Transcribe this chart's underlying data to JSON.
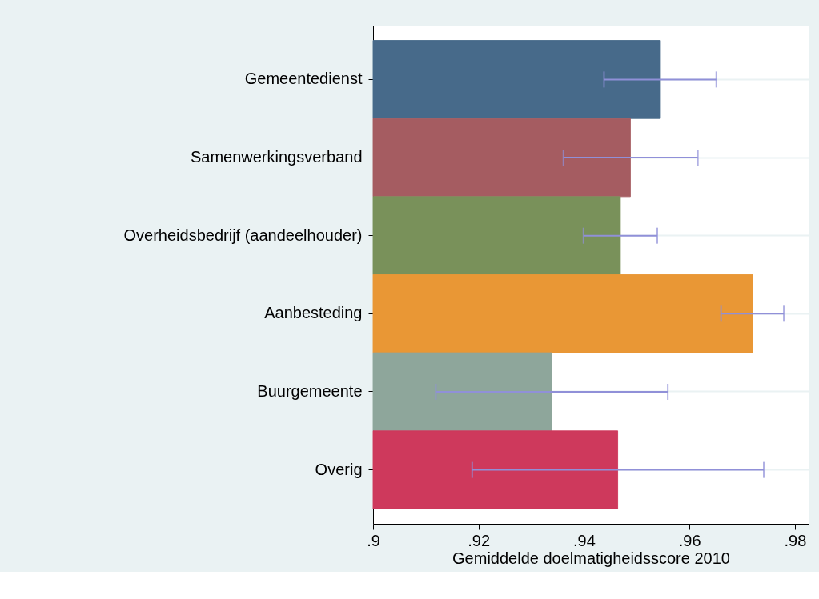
{
  "chart_data": {
    "type": "bar",
    "orientation": "horizontal",
    "xlabel": "Gemiddelde doelmatigheidsscore 2010",
    "categories": [
      "Gemeentedienst",
      "Samenwerkingsverband",
      "Overheidsbedrijf (aandeelhouder)",
      "Aanbesteding",
      "Buurgemeente",
      "Overig"
    ],
    "values": [
      0.9545,
      0.9488,
      0.9469,
      0.972,
      0.9339,
      0.9464
    ],
    "colors": [
      "#476a8a",
      "#a55c61",
      "#79915a",
      "#e99735",
      "#8ea69b",
      "#ce395c"
    ],
    "errors": [
      [
        0.9438,
        0.9651
      ],
      [
        0.9361,
        0.9616
      ],
      [
        0.9399,
        0.9539
      ],
      [
        0.966,
        0.9779
      ],
      [
        0.9119,
        0.9559
      ],
      [
        0.9188,
        0.9741
      ]
    ],
    "xlim": [
      0.9,
      0.9826
    ],
    "xticks": [
      {
        "value": 0.9,
        "label": ".9"
      },
      {
        "value": 0.92,
        "label": ".92"
      },
      {
        "value": 0.94,
        "label": ".94"
      },
      {
        "value": 0.96,
        "label": ".96"
      },
      {
        "value": 0.98,
        "label": ".98"
      }
    ],
    "grid": "y",
    "legend": false
  }
}
